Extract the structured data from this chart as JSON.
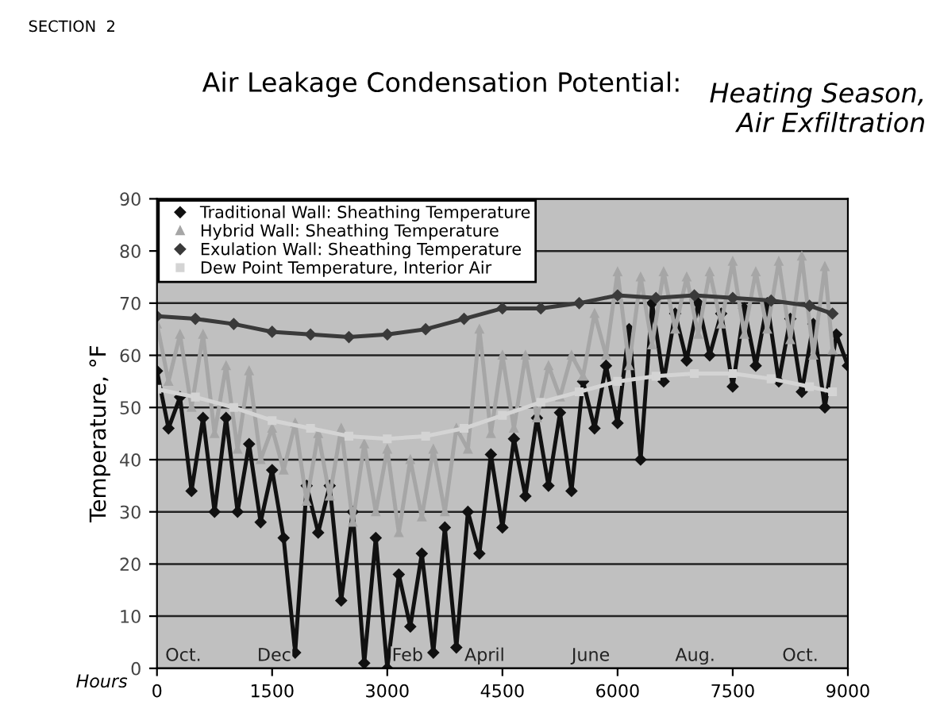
{
  "chart_data": {
    "type": "line",
    "title": "Air Leakage Condensation Potential:",
    "subtitle": "Heating Season, Air Exfiltration",
    "xlabel": "Hours",
    "ylabel": "Temperature, °F",
    "annotations": [
      "SECTION  2",
      "Oct.",
      "Dec",
      "Feb",
      "April",
      "June",
      "Aug.",
      "Oct."
    ],
    "xlim": [
      0,
      9000
    ],
    "xticks": [
      0,
      1500,
      3000,
      4500,
      6000,
      7500,
      9000
    ],
    "ylim": [
      0,
      90
    ],
    "yticks": [
      0,
      10,
      20,
      30,
      40,
      50,
      60,
      70,
      80,
      90
    ],
    "grid": "y",
    "legend": "top left",
    "series": [
      {
        "name": "Traditional Wall: Sheathing Temperature",
        "color": "#111111",
        "marker": "diamond",
        "x": [
          0,
          150,
          300,
          450,
          600,
          750,
          900,
          1050,
          1200,
          1350,
          1500,
          1650,
          1800,
          1950,
          2100,
          2250,
          2400,
          2550,
          2700,
          2850,
          3000,
          3150,
          3300,
          3450,
          3600,
          3750,
          3900,
          4050,
          4200,
          4350,
          4500,
          4650,
          4800,
          4950,
          5100,
          5250,
          5400,
          5550,
          5700,
          5850,
          6000,
          6150,
          6300,
          6450,
          6600,
          6750,
          6900,
          7050,
          7200,
          7350,
          7500,
          7650,
          7800,
          7950,
          8100,
          8250,
          8400,
          8550,
          8700,
          8850,
          9000
        ],
        "values": [
          57,
          46,
          52,
          34,
          48,
          30,
          48,
          30,
          43,
          28,
          38,
          25,
          3,
          35,
          26,
          35,
          13,
          30,
          1,
          25,
          0,
          18,
          8,
          22,
          3,
          27,
          4,
          30,
          22,
          41,
          27,
          44,
          33,
          48,
          35,
          49,
          34,
          55,
          46,
          58,
          47,
          65,
          40,
          70,
          55,
          68,
          59,
          70,
          60,
          68,
          54,
          69,
          58,
          70,
          55,
          67,
          53,
          66,
          50,
          64,
          58
        ]
      },
      {
        "name": "Hybrid Wall: Sheathing Temperature",
        "color": "#a6a6a6",
        "marker": "triangle",
        "x": [
          0,
          150,
          300,
          450,
          600,
          750,
          900,
          1050,
          1200,
          1350,
          1500,
          1650,
          1800,
          1950,
          2100,
          2250,
          2400,
          2550,
          2700,
          2850,
          3000,
          3150,
          3300,
          3450,
          3600,
          3750,
          3900,
          4050,
          4200,
          4350,
          4500,
          4650,
          4800,
          4950,
          5100,
          5250,
          5400,
          5550,
          5700,
          5850,
          6000,
          6150,
          6300,
          6450,
          6600,
          6750,
          6900,
          7050,
          7200,
          7350,
          7500,
          7650,
          7800,
          7950,
          8100,
          8250,
          8400,
          8550,
          8700,
          8800
        ],
        "values": [
          66,
          55,
          64,
          50,
          64,
          45,
          58,
          42,
          57,
          40,
          46,
          38,
          47,
          32,
          45,
          33,
          46,
          28,
          43,
          30,
          42,
          26,
          40,
          29,
          42,
          30,
          46,
          42,
          65,
          45,
          60,
          46,
          60,
          48,
          58,
          52,
          60,
          56,
          68,
          60,
          76,
          58,
          75,
          62,
          76,
          65,
          75,
          64,
          76,
          66,
          78,
          64,
          76,
          65,
          78,
          63,
          79,
          60,
          77,
          61
        ]
      },
      {
        "name": "Exulation Wall: Sheathing Temperature",
        "color": "#3a3a3a",
        "marker": "diamond",
        "x": [
          0,
          500,
          1000,
          1500,
          2000,
          2500,
          3000,
          3500,
          4000,
          4500,
          5000,
          5500,
          6000,
          6500,
          7000,
          7500,
          8000,
          8500,
          8800
        ],
        "values": [
          67.5,
          67,
          66,
          64.5,
          64,
          63.5,
          64,
          65,
          67,
          69,
          69,
          70,
          71.5,
          71,
          71.5,
          71,
          70.5,
          69.5,
          68
        ]
      },
      {
        "name": "Dew Point Temperature, Interior Air",
        "color": "#d4d4d4",
        "marker": "square",
        "x": [
          0,
          500,
          1000,
          1500,
          2000,
          2500,
          3000,
          3500,
          4000,
          4500,
          5000,
          5500,
          6000,
          6500,
          7000,
          7500,
          8000,
          8500,
          8800
        ],
        "values": [
          53.5,
          52,
          50,
          47.5,
          46,
          44.5,
          44,
          44.5,
          46,
          48.5,
          51,
          53,
          55,
          56,
          56.5,
          56.5,
          55.5,
          54,
          53
        ]
      }
    ]
  }
}
